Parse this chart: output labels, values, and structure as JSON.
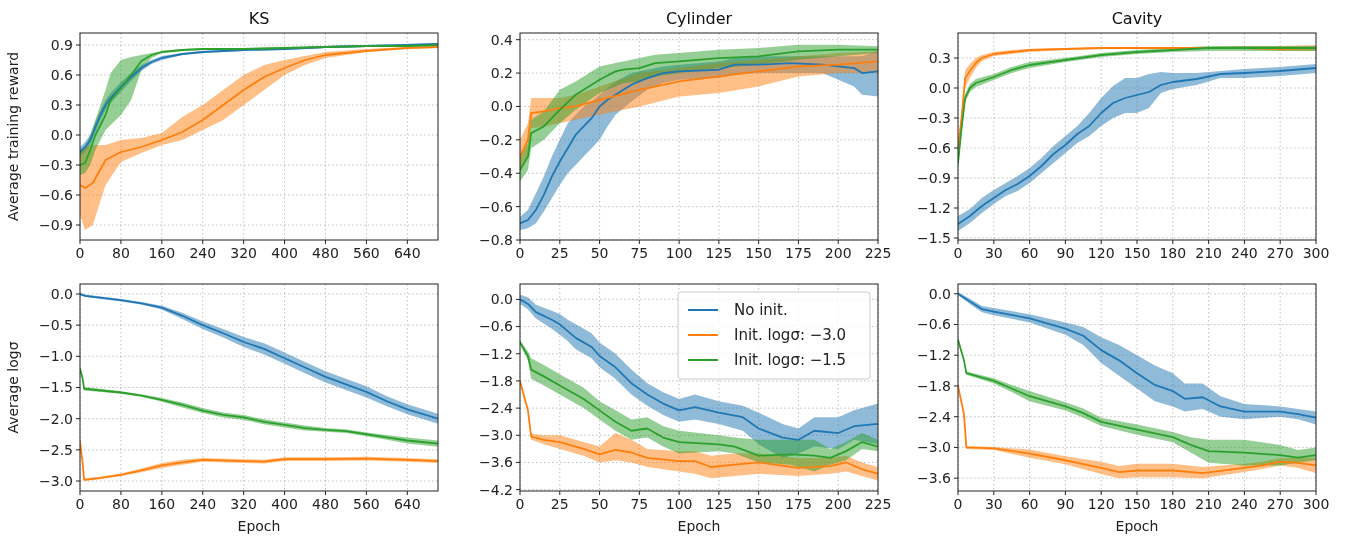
{
  "chart_data": [
    {
      "type": "line",
      "title": "KS",
      "ylabel": "Average training reward",
      "grid": true,
      "legend": false,
      "xlim": [
        0,
        700
      ],
      "xticks": [
        0,
        80,
        160,
        240,
        320,
        400,
        480,
        560,
        640
      ],
      "ylim": [
        -1.05,
        1.02
      ],
      "yticks": [
        {
          "value": -0.9,
          "label": "−0.9"
        },
        {
          "value": -0.6,
          "label": "−0.6"
        },
        {
          "value": -0.3,
          "label": "−0.3"
        },
        {
          "value": 0,
          "label": "0.0"
        },
        0.3,
        0.6,
        0.9
      ],
      "series": [
        {
          "color": "#1f77b4",
          "x": [
            0,
            10,
            20,
            30,
            40,
            50,
            60,
            80,
            100,
            120,
            140,
            160,
            200,
            240,
            320,
            400,
            480,
            560,
            640,
            700
          ],
          "values": [
            -0.17,
            -0.12,
            -0.05,
            0.08,
            0.2,
            0.3,
            0.37,
            0.48,
            0.58,
            0.67,
            0.73,
            0.77,
            0.81,
            0.83,
            0.85,
            0.86,
            0.88,
            0.89,
            0.9,
            0.91
          ],
          "lower": [
            -0.22,
            -0.17,
            -0.1,
            0.03,
            0.15,
            0.25,
            0.32,
            0.43,
            0.54,
            0.64,
            0.71,
            0.75,
            0.8,
            0.82,
            0.84,
            0.85,
            0.87,
            0.88,
            0.89,
            0.9
          ],
          "upper": [
            -0.12,
            -0.07,
            0,
            0.13,
            0.25,
            0.35,
            0.42,
            0.53,
            0.62,
            0.7,
            0.75,
            0.79,
            0.82,
            0.84,
            0.86,
            0.87,
            0.89,
            0.9,
            0.91,
            0.92
          ]
        },
        {
          "color": "#ff7f0e",
          "x": [
            0,
            10,
            25,
            50,
            80,
            120,
            160,
            200,
            240,
            280,
            320,
            360,
            400,
            440,
            480,
            560,
            640,
            700
          ],
          "values": [
            -0.5,
            -0.53,
            -0.48,
            -0.25,
            -0.17,
            -0.12,
            -0.05,
            0.03,
            0.15,
            0.3,
            0.45,
            0.58,
            0.67,
            0.75,
            0.8,
            0.84,
            0.87,
            0.88
          ],
          "lower": [
            -0.8,
            -0.95,
            -0.9,
            -0.5,
            -0.27,
            -0.18,
            -0.1,
            -0.05,
            0.05,
            0.15,
            0.3,
            0.45,
            0.6,
            0.7,
            0.77,
            0.83,
            0.86,
            0.87
          ],
          "upper": [
            -0.15,
            -0.12,
            -0.1,
            -0.1,
            -0.05,
            -0.03,
            0.02,
            0.18,
            0.3,
            0.45,
            0.6,
            0.7,
            0.75,
            0.79,
            0.83,
            0.86,
            0.88,
            0.89
          ]
        },
        {
          "color": "#2ca02c",
          "x": [
            0,
            10,
            20,
            30,
            40,
            50,
            60,
            80,
            100,
            120,
            140,
            160,
            200,
            240,
            320,
            400,
            480,
            560,
            640,
            700
          ],
          "values": [
            -0.3,
            -0.28,
            -0.15,
            0,
            0.1,
            0.2,
            0.35,
            0.47,
            0.6,
            0.74,
            0.8,
            0.83,
            0.85,
            0.86,
            0.86,
            0.87,
            0.88,
            0.89,
            0.89,
            0.9
          ],
          "lower": [
            -0.4,
            -0.38,
            -0.3,
            -0.15,
            -0.05,
            0.05,
            0.1,
            0.2,
            0.35,
            0.65,
            0.77,
            0.82,
            0.84,
            0.85,
            0.85,
            0.86,
            0.87,
            0.88,
            0.88,
            0.89
          ],
          "upper": [
            -0.15,
            -0.12,
            0,
            0.15,
            0.3,
            0.45,
            0.62,
            0.75,
            0.78,
            0.8,
            0.82,
            0.84,
            0.86,
            0.87,
            0.87,
            0.88,
            0.89,
            0.9,
            0.9,
            0.91
          ]
        }
      ]
    },
    {
      "type": "line",
      "title": "Cylinder",
      "grid": true,
      "legend": false,
      "xlim": [
        0,
        225
      ],
      "xticks": [
        0,
        25,
        50,
        75,
        100,
        125,
        150,
        175,
        200,
        225
      ],
      "ylim": [
        -0.8,
        0.44
      ],
      "yticks": [
        {
          "value": -0.8,
          "label": "−0.8"
        },
        {
          "value": -0.6,
          "label": "−0.6"
        },
        {
          "value": -0.4,
          "label": "−0.4"
        },
        {
          "value": -0.2,
          "label": "−0.2"
        },
        {
          "value": 0,
          "label": "0.0"
        },
        0.2,
        0.4
      ],
      "series": [
        {
          "color": "#1f77b4",
          "x": [
            0,
            5,
            10,
            15,
            20,
            25,
            30,
            35,
            40,
            45,
            50,
            55,
            60,
            70,
            80,
            90,
            100,
            125,
            135,
            150,
            170,
            190,
            210,
            215,
            225
          ],
          "values": [
            -0.7,
            -0.68,
            -0.62,
            -0.53,
            -0.42,
            -0.33,
            -0.25,
            -0.17,
            -0.12,
            -0.07,
            0,
            0.04,
            0.07,
            0.13,
            0.17,
            0.2,
            0.21,
            0.22,
            0.25,
            0.25,
            0.26,
            0.25,
            0.23,
            0.2,
            0.21
          ],
          "lower": [
            -0.74,
            -0.73,
            -0.7,
            -0.63,
            -0.55,
            -0.47,
            -0.4,
            -0.35,
            -0.3,
            -0.25,
            -0.2,
            -0.12,
            -0.05,
            0.03,
            0.1,
            0.14,
            0.16,
            0.17,
            0.19,
            0.2,
            0.2,
            0.2,
            0.12,
            0.07,
            0.06
          ],
          "upper": [
            -0.66,
            -0.62,
            -0.52,
            -0.42,
            -0.3,
            -0.2,
            -0.1,
            -0.05,
            0,
            0.03,
            0.07,
            0.11,
            0.15,
            0.2,
            0.22,
            0.24,
            0.25,
            0.27,
            0.29,
            0.3,
            0.3,
            0.3,
            0.3,
            0.3,
            0.33
          ]
        },
        {
          "color": "#ff7f0e",
          "x": [
            0,
            5,
            7,
            15,
            25,
            35,
            50,
            75,
            100,
            125,
            150,
            175,
            200,
            225
          ],
          "values": [
            -0.3,
            -0.2,
            -0.04,
            -0.03,
            -0.01,
            0,
            0.04,
            0.1,
            0.15,
            0.18,
            0.21,
            0.24,
            0.25,
            0.27
          ],
          "lower": [
            -0.4,
            -0.3,
            -0.13,
            -0.12,
            -0.1,
            -0.08,
            -0.05,
            0,
            0.06,
            0.08,
            0.12,
            0.18,
            0.2,
            0.2
          ],
          "upper": [
            -0.2,
            -0.1,
            0.05,
            0.05,
            0.05,
            0.07,
            0.12,
            0.2,
            0.23,
            0.26,
            0.28,
            0.3,
            0.32,
            0.33
          ]
        },
        {
          "color": "#2ca02c",
          "x": [
            0,
            5,
            7,
            15,
            25,
            35,
            50,
            60,
            65,
            75,
            85,
            100,
            125,
            150,
            175,
            200,
            225
          ],
          "values": [
            -0.38,
            -0.3,
            -0.16,
            -0.12,
            -0.02,
            0.07,
            0.16,
            0.21,
            0.22,
            0.23,
            0.26,
            0.27,
            0.29,
            0.3,
            0.33,
            0.34,
            0.34
          ],
          "lower": [
            -0.45,
            -0.38,
            -0.25,
            -0.2,
            -0.1,
            -0.02,
            0.08,
            0.12,
            0.14,
            0.15,
            0.18,
            0.2,
            0.23,
            0.25,
            0.28,
            0.3,
            0.32
          ],
          "upper": [
            -0.3,
            -0.22,
            -0.08,
            -0.03,
            0.1,
            0.15,
            0.24,
            0.26,
            0.27,
            0.29,
            0.31,
            0.32,
            0.34,
            0.35,
            0.37,
            0.37,
            0.36
          ]
        }
      ]
    },
    {
      "type": "line",
      "title": "Cavity",
      "grid": true,
      "legend": false,
      "xlim": [
        0,
        300
      ],
      "xticks": [
        0,
        30,
        60,
        90,
        120,
        150,
        180,
        210,
        240,
        270,
        300
      ],
      "ylim": [
        -1.52,
        0.55
      ],
      "yticks": [
        {
          "value": -1.5,
          "label": "−1.5"
        },
        {
          "value": -1.2,
          "label": "−1.2"
        },
        {
          "value": -0.9,
          "label": "−0.9"
        },
        {
          "value": -0.6,
          "label": "−0.6"
        },
        {
          "value": -0.3,
          "label": "−0.3"
        },
        {
          "value": 0,
          "label": "0.0"
        },
        0.3
      ],
      "series": [
        {
          "color": "#1f77b4",
          "x": [
            0,
            10,
            20,
            30,
            40,
            50,
            60,
            70,
            80,
            90,
            100,
            110,
            120,
            130,
            140,
            150,
            160,
            170,
            180,
            200,
            220,
            240,
            270,
            300
          ],
          "values": [
            -1.36,
            -1.28,
            -1.18,
            -1.1,
            -1.02,
            -0.96,
            -0.88,
            -0.78,
            -0.66,
            -0.57,
            -0.46,
            -0.38,
            -0.25,
            -0.15,
            -0.1,
            -0.07,
            -0.04,
            0.03,
            0.06,
            0.09,
            0.14,
            0.15,
            0.17,
            0.2
          ],
          "lower": [
            -1.43,
            -1.35,
            -1.25,
            -1.16,
            -1.08,
            -1.03,
            -0.95,
            -0.85,
            -0.75,
            -0.65,
            -0.55,
            -0.48,
            -0.38,
            -0.3,
            -0.25,
            -0.25,
            -0.2,
            -0.05,
            -0.01,
            0.03,
            0.1,
            0.1,
            0.12,
            0.15
          ],
          "upper": [
            -1.28,
            -1.21,
            -1.1,
            -1.02,
            -0.95,
            -0.88,
            -0.8,
            -0.7,
            -0.58,
            -0.48,
            -0.38,
            -0.25,
            -0.1,
            0.02,
            0.1,
            0.1,
            0.14,
            0.16,
            0.15,
            0.15,
            0.17,
            0.19,
            0.21,
            0.24
          ]
        },
        {
          "color": "#ff7f0e",
          "x": [
            0,
            3,
            6,
            10,
            15,
            20,
            30,
            45,
            60,
            90,
            120,
            150,
            180,
            210,
            240,
            270,
            300
          ],
          "values": [
            -0.6,
            -0.3,
            0.1,
            0.17,
            0.25,
            0.3,
            0.34,
            0.36,
            0.38,
            0.39,
            0.4,
            0.4,
            0.4,
            0.4,
            0.4,
            0.39,
            0.4
          ],
          "lower": [
            -0.65,
            -0.35,
            0,
            0.1,
            0.2,
            0.27,
            0.32,
            0.34,
            0.36,
            0.38,
            0.39,
            0.39,
            0.39,
            0.39,
            0.39,
            0.37,
            0.37
          ],
          "upper": [
            -0.55,
            -0.25,
            0.18,
            0.24,
            0.3,
            0.33,
            0.36,
            0.38,
            0.39,
            0.4,
            0.41,
            0.41,
            0.41,
            0.41,
            0.42,
            0.42,
            0.43
          ]
        },
        {
          "color": "#2ca02c",
          "x": [
            0,
            3,
            6,
            10,
            15,
            30,
            45,
            60,
            90,
            120,
            150,
            180,
            210,
            240,
            270,
            300
          ],
          "values": [
            -0.75,
            -0.4,
            -0.1,
            0,
            0.05,
            0.11,
            0.18,
            0.23,
            0.28,
            0.33,
            0.36,
            0.38,
            0.4,
            0.4,
            0.4,
            0.4
          ],
          "lower": [
            -0.8,
            -0.45,
            -0.14,
            -0.04,
            0.01,
            0.08,
            0.15,
            0.2,
            0.26,
            0.31,
            0.34,
            0.36,
            0.37,
            0.37,
            0.37,
            0.37
          ],
          "upper": [
            -0.7,
            -0.35,
            -0.06,
            0.04,
            0.09,
            0.14,
            0.21,
            0.26,
            0.3,
            0.35,
            0.38,
            0.4,
            0.42,
            0.42,
            0.42,
            0.42
          ]
        }
      ]
    },
    {
      "type": "line",
      "xlabel": "Epoch",
      "ylabel": "Average logσ",
      "grid": true,
      "legend": false,
      "xlim": [
        0,
        700
      ],
      "xticks": [
        0,
        80,
        160,
        240,
        320,
        400,
        480,
        560,
        640
      ],
      "ylim": [
        -3.16,
        0.16
      ],
      "yticks": [
        {
          "value": -3,
          "label": "−3.0"
        },
        {
          "value": -2.5,
          "label": "−2.5"
        },
        {
          "value": -2,
          "label": "−2.0"
        },
        {
          "value": -1.5,
          "label": "−1.5"
        },
        {
          "value": -1,
          "label": "−1.0"
        },
        {
          "value": -0.5,
          "label": "−0.5"
        },
        {
          "value": 0,
          "label": "0.0"
        }
      ],
      "series": [
        {
          "color": "#1f77b4",
          "x": [
            0,
            10,
            80,
            120,
            160,
            200,
            240,
            280,
            320,
            360,
            400,
            440,
            480,
            520,
            560,
            600,
            640,
            700
          ],
          "values": [
            0,
            -0.03,
            -0.1,
            -0.15,
            -0.22,
            -0.35,
            -0.5,
            -0.63,
            -0.77,
            -0.88,
            -1.03,
            -1.18,
            -1.33,
            -1.45,
            -1.57,
            -1.72,
            -1.85,
            -2
          ],
          "lower": [
            -0.02,
            -0.05,
            -0.12,
            -0.17,
            -0.25,
            -0.4,
            -0.56,
            -0.7,
            -0.85,
            -0.97,
            -1.12,
            -1.27,
            -1.42,
            -1.54,
            -1.66,
            -1.8,
            -1.93,
            -2.08
          ],
          "upper": [
            0.02,
            -0.01,
            -0.08,
            -0.13,
            -0.19,
            -0.3,
            -0.44,
            -0.56,
            -0.69,
            -0.79,
            -0.94,
            -1.09,
            -1.24,
            -1.36,
            -1.48,
            -1.64,
            -1.77,
            -1.92
          ]
        },
        {
          "color": "#ff7f0e",
          "x": [
            0,
            5,
            8,
            40,
            80,
            120,
            160,
            200,
            240,
            320,
            360,
            400,
            480,
            560,
            640,
            700
          ],
          "values": [
            -2.37,
            -2.7,
            -2.98,
            -2.95,
            -2.9,
            -2.83,
            -2.75,
            -2.7,
            -2.66,
            -2.68,
            -2.69,
            -2.65,
            -2.65,
            -2.64,
            -2.66,
            -2.68
          ],
          "lower": [
            -2.4,
            -2.73,
            -3,
            -2.97,
            -2.92,
            -2.86,
            -2.79,
            -2.74,
            -2.69,
            -2.71,
            -2.72,
            -2.68,
            -2.68,
            -2.67,
            -2.69,
            -2.71
          ],
          "upper": [
            -2.34,
            -2.67,
            -2.96,
            -2.93,
            -2.88,
            -2.8,
            -2.71,
            -2.66,
            -2.63,
            -2.65,
            -2.66,
            -2.62,
            -2.62,
            -2.61,
            -2.63,
            -2.65
          ]
        },
        {
          "color": "#2ca02c",
          "x": [
            0,
            5,
            8,
            80,
            120,
            160,
            200,
            240,
            280,
            320,
            360,
            400,
            440,
            480,
            520,
            560,
            600,
            640,
            700
          ],
          "values": [
            -1.2,
            -1.35,
            -1.52,
            -1.58,
            -1.63,
            -1.7,
            -1.78,
            -1.87,
            -1.94,
            -1.98,
            -2.05,
            -2.1,
            -2.15,
            -2.18,
            -2.2,
            -2.25,
            -2.3,
            -2.35,
            -2.4
          ],
          "lower": [
            -1.23,
            -1.38,
            -1.55,
            -1.6,
            -1.65,
            -1.73,
            -1.82,
            -1.91,
            -1.98,
            -2.02,
            -2.09,
            -2.14,
            -2.19,
            -2.21,
            -2.23,
            -2.28,
            -2.34,
            -2.4,
            -2.45
          ],
          "upper": [
            -1.17,
            -1.32,
            -1.49,
            -1.56,
            -1.61,
            -1.67,
            -1.74,
            -1.83,
            -1.9,
            -1.94,
            -2.01,
            -2.06,
            -2.11,
            -2.15,
            -2.17,
            -2.22,
            -2.26,
            -2.3,
            -2.35
          ]
        }
      ]
    },
    {
      "type": "line",
      "xlabel": "Epoch",
      "grid": true,
      "legend": "top right",
      "xlim": [
        0,
        225
      ],
      "xticks": [
        0,
        25,
        50,
        75,
        100,
        125,
        150,
        175,
        200,
        225
      ],
      "ylim": [
        -4.23,
        0.34
      ],
      "yticks": [
        {
          "value": -4.2,
          "label": "−4.2"
        },
        {
          "value": -3.6,
          "label": "−3.6"
        },
        {
          "value": -3,
          "label": "−3.0"
        },
        {
          "value": -2.4,
          "label": "−2.4"
        },
        {
          "value": -1.8,
          "label": "−1.8"
        },
        {
          "value": -1.2,
          "label": "−1.2"
        },
        {
          "value": -0.6,
          "label": "−0.6"
        },
        {
          "value": 0,
          "label": "0.0"
        }
      ],
      "series": [
        {
          "name": "No init.",
          "color": "#1f77b4",
          "x": [
            0,
            5,
            10,
            20,
            25,
            30,
            35,
            45,
            50,
            60,
            70,
            80,
            90,
            100,
            110,
            125,
            140,
            150,
            165,
            175,
            185,
            200,
            210,
            225
          ],
          "values": [
            0,
            -0.1,
            -0.28,
            -0.45,
            -0.55,
            -0.7,
            -0.85,
            -1.05,
            -1.25,
            -1.5,
            -1.85,
            -2.1,
            -2.3,
            -2.45,
            -2.38,
            -2.5,
            -2.6,
            -2.85,
            -3.05,
            -3.1,
            -2.9,
            -2.95,
            -2.8,
            -2.75
          ],
          "lower": [
            -0.1,
            -0.22,
            -0.42,
            -0.65,
            -0.78,
            -0.92,
            -1.1,
            -1.3,
            -1.5,
            -1.75,
            -2.1,
            -2.35,
            -2.55,
            -2.7,
            -2.65,
            -2.75,
            -2.9,
            -3.2,
            -3.5,
            -3.4,
            -3.25,
            -3.3,
            -3.1,
            -3.2
          ],
          "upper": [
            0.1,
            0.05,
            -0.12,
            -0.25,
            -0.32,
            -0.45,
            -0.55,
            -0.75,
            -0.95,
            -1.2,
            -1.55,
            -1.85,
            -2.05,
            -2.2,
            -2.1,
            -2.25,
            -2.35,
            -2.5,
            -2.75,
            -2.85,
            -2.6,
            -2.6,
            -2.45,
            -2.3
          ]
        },
        {
          "name": "Init. logσ: −3.0",
          "color": "#ff7f0e",
          "x": [
            0,
            3,
            5,
            7,
            15,
            25,
            40,
            50,
            60,
            70,
            80,
            100,
            110,
            120,
            135,
            150,
            175,
            195,
            205,
            215,
            225
          ],
          "values": [
            -1.8,
            -2.2,
            -2.45,
            -3.03,
            -3.1,
            -3.15,
            -3.3,
            -3.42,
            -3.32,
            -3.38,
            -3.5,
            -3.57,
            -3.57,
            -3.7,
            -3.65,
            -3.6,
            -3.72,
            -3.68,
            -3.6,
            -3.75,
            -3.85
          ],
          "lower": [
            -1.85,
            -2.25,
            -2.5,
            -3.1,
            -3.2,
            -3.3,
            -3.45,
            -3.6,
            -3.55,
            -3.6,
            -3.7,
            -3.8,
            -3.85,
            -3.95,
            -3.9,
            -3.85,
            -3.9,
            -3.85,
            -3.8,
            -3.9,
            -4
          ],
          "upper": [
            -1.75,
            -2.15,
            -2.4,
            -2.96,
            -3,
            -3,
            -3.15,
            -3.25,
            -2.95,
            -3.1,
            -3.3,
            -3.35,
            -3.35,
            -3.45,
            -3.4,
            -3.4,
            -3.5,
            -3.5,
            -3.45,
            -3.6,
            -3.7
          ]
        },
        {
          "name": "Init. logσ: −1.5",
          "color": "#2ca02c",
          "x": [
            0,
            5,
            7,
            15,
            25,
            40,
            50,
            60,
            70,
            80,
            90,
            100,
            125,
            135,
            150,
            170,
            185,
            195,
            205,
            215,
            225
          ],
          "values": [
            -0.95,
            -1.25,
            -1.55,
            -1.7,
            -1.9,
            -2.2,
            -2.45,
            -2.7,
            -2.9,
            -2.85,
            -3.05,
            -3.15,
            -3.2,
            -3.25,
            -3.45,
            -3.42,
            -3.45,
            -3.5,
            -3.35,
            -3.15,
            -3.25
          ],
          "lower": [
            -1,
            -1.35,
            -1.75,
            -1.9,
            -2.1,
            -2.4,
            -2.65,
            -2.9,
            -3.1,
            -3.05,
            -3.25,
            -3.4,
            -3.35,
            -3.4,
            -3.6,
            -3.65,
            -3.8,
            -3.65,
            -3.55,
            -3.3,
            -3.35
          ],
          "upper": [
            -0.9,
            -1.15,
            -1.3,
            -1.45,
            -1.65,
            -1.95,
            -2.25,
            -2.45,
            -2.65,
            -2.6,
            -2.8,
            -2.9,
            -3,
            -3.05,
            -3.1,
            -3.1,
            -3.1,
            -3.3,
            -3.15,
            -2.95,
            -3.1
          ]
        }
      ]
    },
    {
      "type": "line",
      "xlabel": "Epoch",
      "grid": true,
      "legend": false,
      "xlim": [
        0,
        300
      ],
      "xticks": [
        0,
        30,
        60,
        90,
        120,
        150,
        180,
        210,
        240,
        270,
        300
      ],
      "ylim": [
        -3.85,
        0.19
      ],
      "yticks": [
        {
          "value": -3.6,
          "label": "−3.6"
        },
        {
          "value": -3,
          "label": "−3.0"
        },
        {
          "value": -2.4,
          "label": "−2.4"
        },
        {
          "value": -1.8,
          "label": "−1.8"
        },
        {
          "value": -1.2,
          "label": "−1.2"
        },
        {
          "value": -0.6,
          "label": "−0.6"
        },
        {
          "value": 0,
          "label": "0.0"
        }
      ],
      "series": [
        {
          "color": "#1f77b4",
          "x": [
            0,
            10,
            20,
            30,
            60,
            90,
            105,
            120,
            135,
            150,
            165,
            180,
            190,
            205,
            220,
            240,
            270,
            285,
            300
          ],
          "values": [
            0,
            -0.15,
            -0.3,
            -0.35,
            -0.48,
            -0.68,
            -0.82,
            -1.1,
            -1.3,
            -1.55,
            -1.78,
            -1.9,
            -2.05,
            -2.02,
            -2.2,
            -2.3,
            -2.3,
            -2.35,
            -2.42
          ],
          "lower": [
            -0.03,
            -0.2,
            -0.36,
            -0.42,
            -0.56,
            -0.8,
            -1,
            -1.35,
            -1.6,
            -1.85,
            -2.1,
            -2.2,
            -2.3,
            -2.25,
            -2.4,
            -2.45,
            -2.4,
            -2.45,
            -2.55
          ],
          "upper": [
            0.03,
            -0.1,
            -0.24,
            -0.28,
            -0.4,
            -0.56,
            -0.65,
            -0.85,
            -1,
            -1.2,
            -1.4,
            -1.55,
            -1.75,
            -1.75,
            -2,
            -2.15,
            -2.2,
            -2.25,
            -2.3
          ]
        },
        {
          "color": "#ff7f0e",
          "x": [
            0,
            5,
            7,
            30,
            60,
            90,
            120,
            135,
            150,
            180,
            205,
            240,
            255,
            270,
            285,
            300
          ],
          "values": [
            -1.8,
            -2.35,
            -3,
            -3.02,
            -3.12,
            -3.25,
            -3.4,
            -3.48,
            -3.45,
            -3.45,
            -3.5,
            -3.4,
            -3.35,
            -3.28,
            -3.3,
            -3.35
          ],
          "lower": [
            -1.83,
            -2.38,
            -3.03,
            -3.05,
            -3.2,
            -3.33,
            -3.52,
            -3.6,
            -3.58,
            -3.58,
            -3.6,
            -3.48,
            -3.42,
            -3.35,
            -3.4,
            -3.5
          ],
          "upper": [
            -1.77,
            -2.32,
            -2.97,
            -2.99,
            -3.04,
            -3.17,
            -3.28,
            -3.36,
            -3.32,
            -3.32,
            -3.38,
            -3.32,
            -3.28,
            -3.21,
            -3.2,
            -3.2
          ]
        },
        {
          "color": "#2ca02c",
          "x": [
            0,
            5,
            7,
            30,
            45,
            60,
            90,
            105,
            120,
            150,
            180,
            195,
            210,
            240,
            270,
            285,
            300
          ],
          "values": [
            -0.9,
            -1.3,
            -1.55,
            -1.7,
            -1.85,
            -2,
            -2.2,
            -2.33,
            -2.5,
            -2.65,
            -2.8,
            -2.95,
            -3.07,
            -3.1,
            -3.15,
            -3.2,
            -3.15
          ],
          "lower": [
            -0.93,
            -1.33,
            -1.58,
            -1.75,
            -1.92,
            -2.1,
            -2.28,
            -2.42,
            -2.58,
            -2.75,
            -2.9,
            -3.1,
            -3.3,
            -3.35,
            -3.35,
            -3.3,
            -3.25
          ],
          "upper": [
            -0.87,
            -1.27,
            -1.52,
            -1.65,
            -1.78,
            -1.9,
            -2.12,
            -2.24,
            -2.42,
            -2.55,
            -2.7,
            -2.8,
            -2.85,
            -2.85,
            -2.95,
            -3.05,
            -3
          ]
        }
      ]
    }
  ]
}
